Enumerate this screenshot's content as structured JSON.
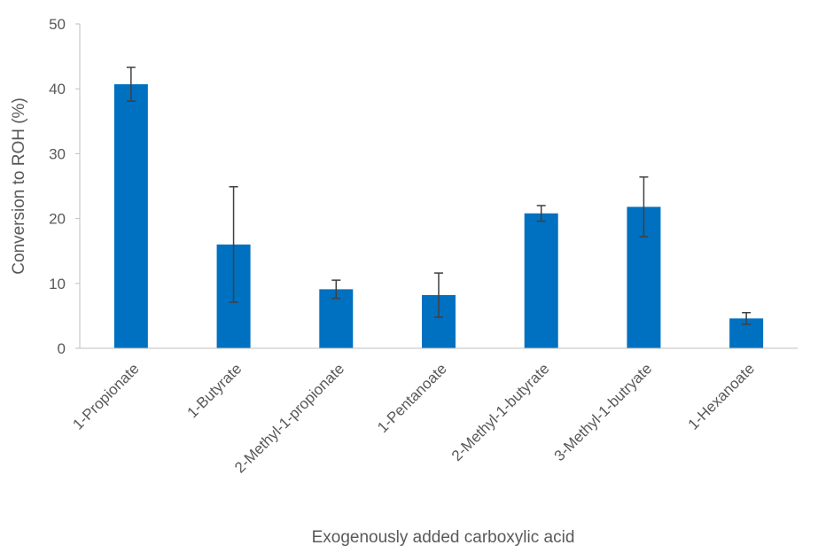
{
  "chart_data": {
    "type": "bar",
    "xlabel": "Exogenously added carboxylic acid",
    "ylabel": "Conversion to ROH (%)",
    "ylim": [
      0,
      50
    ],
    "yticks": [
      0,
      10,
      20,
      30,
      40,
      50
    ],
    "grid": false,
    "categories": [
      "1-Propionate",
      "1-Butyrate",
      "2-Methyl-1-propionate",
      "1-Pentanoate",
      "2-Methyl-1-butyrate",
      "3-Methyl-1-butryate",
      "1-Hexanoate"
    ],
    "values": [
      40.7,
      16.0,
      9.1,
      8.2,
      20.8,
      21.8,
      4.6
    ],
    "error": [
      2.6,
      8.9,
      1.4,
      3.4,
      1.2,
      4.6,
      0.9
    ],
    "colors": {
      "bar": "#0070C0",
      "error_bar": "#404040",
      "axis": "#BFBFBF"
    }
  }
}
